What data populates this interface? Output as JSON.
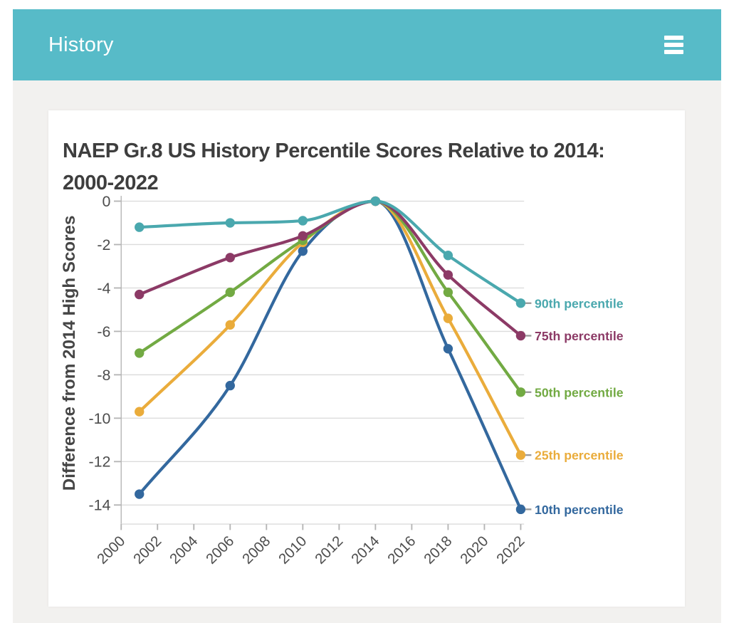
{
  "header": {
    "title": "History",
    "menu_icon": "hamburger-icon",
    "background": "#57BBC8"
  },
  "colors": {
    "page_background": "#F2F1EF",
    "card_background": "#FFFFFF",
    "header_background": "#57BBC8",
    "title_text": "#3E3E3E",
    "axis_text": "#4D4D4D",
    "ylabel_text": "#454545",
    "grid_line": "#DCDCDC",
    "axis_line": "#B5B5B5",
    "label_connector": "#999999"
  },
  "chart_data": {
    "type": "line",
    "title": "NAEP Gr.8 US History Percentile Scores Relative to 2014: 2000-2022",
    "title_lines": [
      "NAEP Gr.8 US History Percentile Scores Relative to 2014:",
      "2000-2022"
    ],
    "xlabel": "",
    "ylabel": "Difference from 2014 High Scores",
    "x": [
      2001,
      2006,
      2010,
      2014,
      2018,
      2022
    ],
    "x_tick_labels": [
      "2000",
      "2002",
      "2004",
      "2006",
      "2008",
      "2010",
      "2012",
      "2014",
      "2016",
      "2018",
      "2020",
      "2022"
    ],
    "y_tick_labels": [
      "0",
      "-2",
      "-4",
      "-6",
      "-8",
      "-10",
      "-12",
      "-14"
    ],
    "y_ticks": [
      0,
      -2,
      -4,
      -6,
      -8,
      -10,
      -12,
      -14
    ],
    "xlim": [
      2000,
      2022.2
    ],
    "ylim": [
      0.25,
      -14.9
    ],
    "grid": "horizontal",
    "curve": "monotone",
    "legend_position": "labels-at-line-ends",
    "series": [
      {
        "name": "90th percentile",
        "color": "#4AA8AE",
        "values": [
          -1.2,
          -1.0,
          -0.9,
          0,
          -2.5,
          -4.7
        ]
      },
      {
        "name": "75th percentile",
        "color": "#8C3A66",
        "values": [
          -4.3,
          -2.6,
          -1.6,
          0,
          -3.4,
          -6.2
        ]
      },
      {
        "name": "50th percentile",
        "color": "#72AA43",
        "values": [
          -7.0,
          -4.2,
          -1.8,
          0,
          -4.2,
          -8.8
        ]
      },
      {
        "name": "25th percentile",
        "color": "#EAAC3B",
        "values": [
          -9.7,
          -5.7,
          -1.9,
          0,
          -5.4,
          -11.7
        ]
      },
      {
        "name": "10th percentile",
        "color": "#33689E",
        "values": [
          -13.5,
          -8.5,
          -2.3,
          0,
          -6.8,
          -14.2
        ]
      }
    ]
  }
}
